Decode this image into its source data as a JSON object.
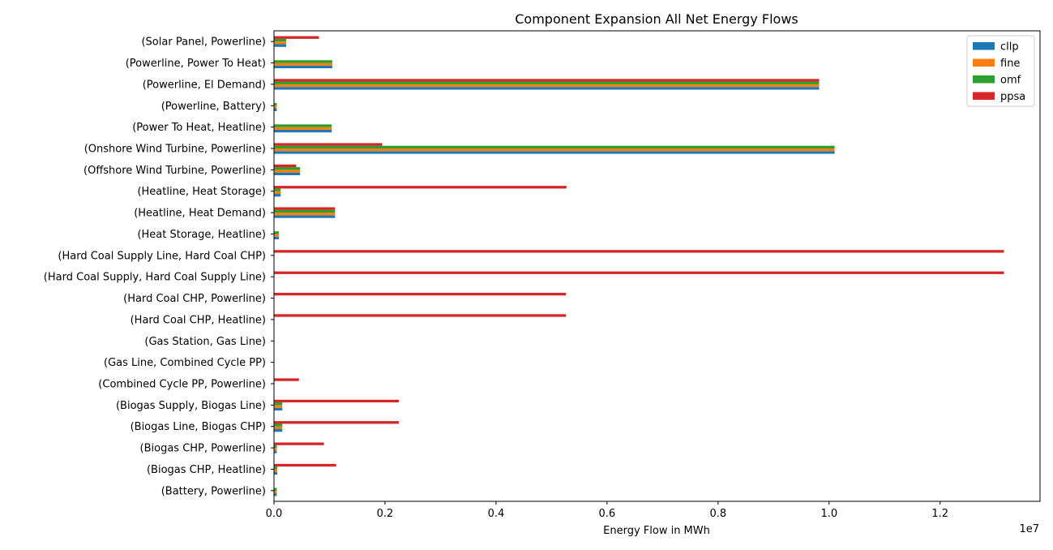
{
  "chart_data": {
    "type": "bar",
    "orientation": "horizontal",
    "title": "Component Expansion All Net Energy Flows",
    "xlabel": "Energy Flow in MWh",
    "ylabel": "",
    "x_offset_text": "1e7",
    "xlim": [
      0,
      13800000
    ],
    "xticks": [
      0,
      2000000,
      4000000,
      6000000,
      8000000,
      10000000,
      12000000
    ],
    "xtick_labels": [
      "0.0",
      "0.2",
      "0.4",
      "0.6",
      "0.8",
      "1.0",
      "1.2"
    ],
    "grid": false,
    "legend_position": "top-right",
    "categories": [
      "(Battery, Powerline)",
      "(Biogas CHP, Heatline)",
      "(Biogas CHP, Powerline)",
      "(Biogas Line, Biogas CHP)",
      "(Biogas Supply, Biogas Line)",
      "(Combined Cycle PP, Powerline)",
      "(Gas Line, Combined Cycle PP)",
      "(Gas Station, Gas Line)",
      "(Hard Coal CHP, Heatline)",
      "(Hard Coal CHP, Powerline)",
      "(Hard Coal Supply, Hard Coal Supply Line)",
      "(Hard Coal Supply Line, Hard Coal CHP)",
      "(Heat Storage, Heatline)",
      "(Heatline, Heat Demand)",
      "(Heatline, Heat Storage)",
      "(Offshore Wind Turbine, Powerline)",
      "(Onshore Wind Turbine, Powerline)",
      "(Power To Heat, Heatline)",
      "(Powerline, Battery)",
      "(Powerline, El Demand)",
      "(Powerline, Power To Heat)",
      "(Solar Panel, Powerline)"
    ],
    "series": [
      {
        "name": "cllp",
        "color": "#1f77b4",
        "values": [
          50000,
          60000,
          50000,
          150000,
          150000,
          0,
          0,
          0,
          0,
          0,
          0,
          0,
          90000,
          1100000,
          120000,
          470000,
          10100000,
          1040000,
          50000,
          9820000,
          1050000,
          220000
        ]
      },
      {
        "name": "fine",
        "color": "#ff7f0e",
        "values": [
          50000,
          60000,
          50000,
          150000,
          150000,
          0,
          0,
          0,
          0,
          0,
          0,
          0,
          90000,
          1100000,
          120000,
          470000,
          10100000,
          1040000,
          50000,
          9820000,
          1050000,
          220000
        ]
      },
      {
        "name": "omf",
        "color": "#2ca02c",
        "values": [
          50000,
          60000,
          50000,
          150000,
          150000,
          0,
          0,
          0,
          0,
          0,
          0,
          0,
          90000,
          1100000,
          120000,
          470000,
          10100000,
          1040000,
          50000,
          9820000,
          1050000,
          220000
        ]
      },
      {
        "name": "ppsa",
        "color": "#d62728",
        "values": [
          0,
          1120000,
          900000,
          2250000,
          2250000,
          450000,
          0,
          0,
          5260000,
          5260000,
          13150000,
          13150000,
          0,
          1100000,
          5270000,
          400000,
          1950000,
          0,
          0,
          9820000,
          0,
          810000
        ]
      }
    ]
  }
}
